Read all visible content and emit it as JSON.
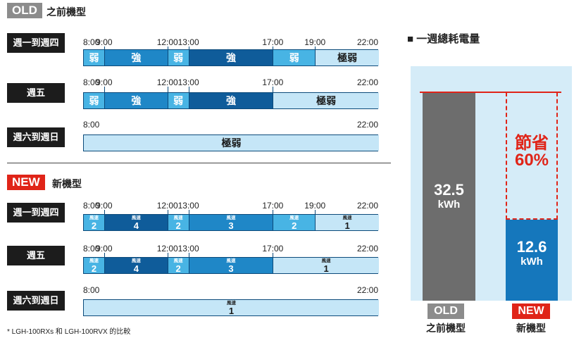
{
  "old_section": {
    "badge": "OLD",
    "title": "之前機型",
    "badge_color": "#8c8c8c"
  },
  "new_section": {
    "badge": "NEW",
    "title": "新機型",
    "badge_color": "#e02418"
  },
  "old_rows": [
    {
      "label": "週一到週四",
      "hours": [
        "8:00",
        "9:00",
        "12:00",
        "13:00",
        "17:00",
        "19:00",
        "22:00"
      ],
      "segments": [
        {
          "label": "弱",
          "level": "c2"
        },
        {
          "label": "強",
          "level": "c3"
        },
        {
          "label": "弱",
          "level": "c2"
        },
        {
          "label": "強",
          "level": "c4"
        },
        {
          "label": "弱",
          "level": "c2"
        },
        {
          "label": "極弱",
          "level": "c1"
        }
      ]
    },
    {
      "label": "週五",
      "hours": [
        "8:00",
        "9:00",
        "12:00",
        "13:00",
        "17:00",
        "22:00"
      ],
      "segments": [
        {
          "label": "弱",
          "level": "c2"
        },
        {
          "label": "強",
          "level": "c3"
        },
        {
          "label": "弱",
          "level": "c2"
        },
        {
          "label": "強",
          "level": "c4"
        },
        {
          "label": "極弱",
          "level": "c1"
        }
      ]
    },
    {
      "label": "週六到週日",
      "hours": [
        "8:00",
        "22:00"
      ],
      "segments": [
        {
          "label": "極弱",
          "level": "c1"
        }
      ]
    }
  ],
  "new_rows": [
    {
      "label": "週一到週四",
      "hours": [
        "8:00",
        "9:00",
        "12:00",
        "13:00",
        "17:00",
        "19:00",
        "22:00"
      ],
      "segments": [
        {
          "small": "風速",
          "num": "2",
          "level": "c2"
        },
        {
          "small": "風速",
          "num": "4",
          "level": "c4"
        },
        {
          "small": "風速",
          "num": "2",
          "level": "c2"
        },
        {
          "small": "風速",
          "num": "3",
          "level": "c3"
        },
        {
          "small": "風速",
          "num": "2",
          "level": "c2"
        },
        {
          "small": "風速",
          "num": "1",
          "level": "c1"
        }
      ]
    },
    {
      "label": "週五",
      "hours": [
        "8:00",
        "9:00",
        "12:00",
        "13:00",
        "17:00",
        "22:00"
      ],
      "segments": [
        {
          "small": "風速",
          "num": "2",
          "level": "c2"
        },
        {
          "small": "風速",
          "num": "4",
          "level": "c4"
        },
        {
          "small": "風速",
          "num": "2",
          "level": "c2"
        },
        {
          "small": "風速",
          "num": "3",
          "level": "c3"
        },
        {
          "small": "風速",
          "num": "1",
          "level": "c1"
        }
      ]
    },
    {
      "label": "週六到週日",
      "hours": [
        "8:00",
        "22:00"
      ],
      "segments": [
        {
          "small": "風速",
          "num": "1",
          "level": "c1"
        }
      ]
    }
  ],
  "footnote": "* LGH-100RXs 和 LGH-100RVX 的比較",
  "energy_chart": {
    "title": "■ 一週總耗電量",
    "old_value": 32.5,
    "new_value": 12.6,
    "unit": "kWh",
    "old_value_text": "32.5",
    "new_value_text": "12.6",
    "savings_label": "節省",
    "savings_pct": "60%",
    "old_label": "OLD",
    "old_sub": "之前機型",
    "new_label": "NEW",
    "new_sub": "新機型"
  }
}
